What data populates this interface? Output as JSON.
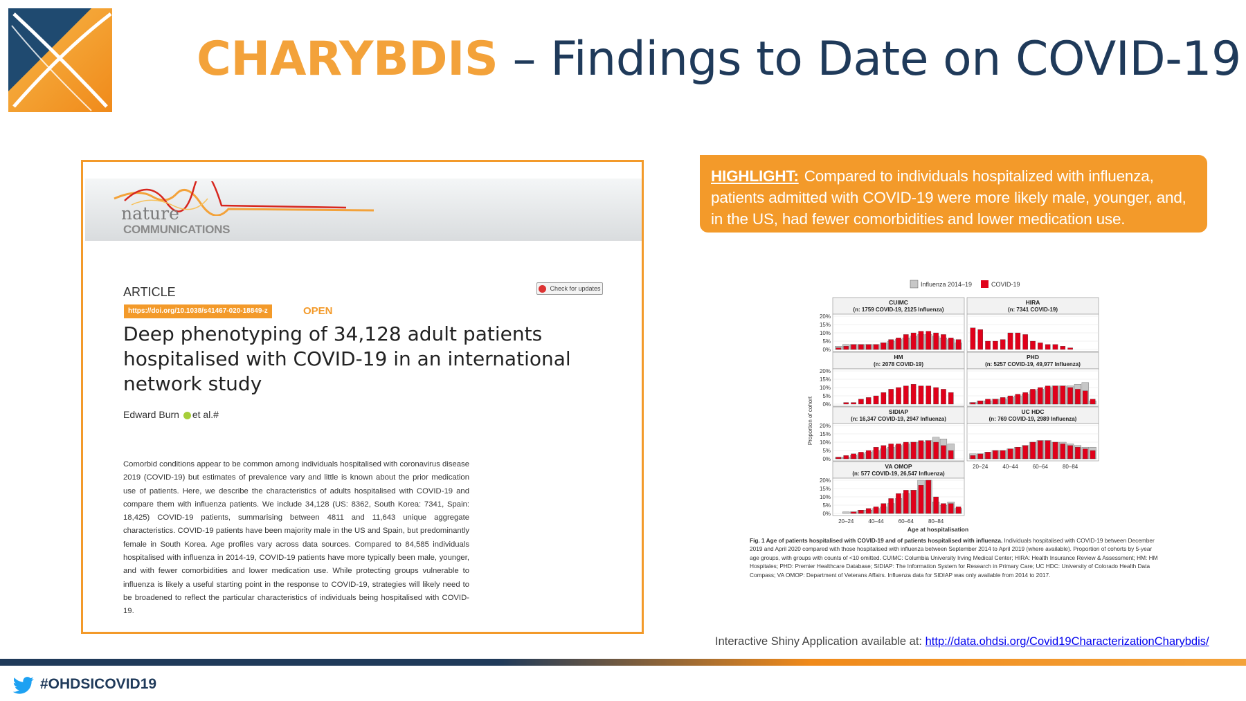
{
  "slide": {
    "title_accent": "CHARYBDIS",
    "title_rest": " – Findings to Date on COVID-19",
    "colors": {
      "accent": "#f3a23a",
      "navy": "#1f3a5a",
      "covid": "#e0001a",
      "influenza": "#c7c7c7"
    }
  },
  "paper": {
    "journal_name": "nature",
    "journal_sub": "COMMUNICATIONS",
    "article_type": "ARTICLE",
    "check_updates": "Check for updates",
    "doi": "https://doi.org/10.1038/s41467-020-18849-z",
    "open_label": "OPEN",
    "title": "Deep phenotyping of 34,128 adult patients hospitalised with COVID-19 in an international network study",
    "authors_name": "Edward Burn",
    "authors_suffix": "et al.#",
    "abstract": "Comorbid conditions appear to be common among individuals hospitalised with coronavirus disease 2019 (COVID-19) but estimates of prevalence vary and little is known about the prior medication use of patients. Here, we describe the characteristics of adults hospitalised with COVID-19 and compare them with influenza patients. We include 34,128 (US: 8362, South Korea: 7341, Spain: 18,425) COVID-19 patients, summarising between 4811 and 11,643 unique aggregate characteristics. COVID-19 patients have been majority male in the US and Spain, but predominantly female in South Korea. Age profiles vary across data sources. Compared to 84,585 individuals hospitalised with influenza in 2014-19, COVID-19 patients have more typically been male, younger, and with fewer comorbidities and lower medication use. While protecting groups vulnerable to influenza is likely a useful starting point in the response to COVID-19, strategies will likely need to be broadened to reflect the particular characteristics of individuals being hospitalised with COVID-19."
  },
  "highlight": {
    "label": "HIGHLIGHT:",
    "text": "Compared to individuals hospitalized with influenza, patients admitted with COVID-19 were more likely male, younger, and, in the US, had fewer comorbidities and lower medication use."
  },
  "figure": {
    "caption_bold": "Fig. 1 Age of patients hospitalised with COVID-19 and of patients hospitalised with influenza.",
    "caption_text": " Individuals hospitalised with COVID-19 between December 2019 and April 2020 compared with those hospitalised with influenza between September 2014 to April 2019 (where available). Proportion of cohorts by 5-year age groups, with groups with counts of <10 omitted. CUIMC: Columbia University Irving Medical Center; HIRA: Health Insurance Review & Assessment; HM: HM Hospitales; PHD: Premier Healthcare Database; SIDIAP: The Information System for Research in Primary Care; UC HDC: University of Colorado Health Data Compass; VA OMOP: Department of Veterans Affairs. Influenza data for SIDIAP was only available from 2014 to 2017."
  },
  "chart_data": {
    "type": "bar",
    "legend": [
      "Influenza 2014–19",
      "COVID-19"
    ],
    "legend_position": "top",
    "ylabel": "Proportion of cohort",
    "xlabel": "Age at hospitalisation",
    "yticks": [
      "0%",
      "5%",
      "10%",
      "15%",
      "20%"
    ],
    "ylim": [
      0,
      20
    ],
    "xticks": [
      "20–24",
      "40–44",
      "60–64",
      "80–84"
    ],
    "categories": [
      "18-19",
      "20-24",
      "25-29",
      "30-34",
      "35-39",
      "40-44",
      "45-49",
      "50-54",
      "55-59",
      "60-64",
      "65-69",
      "70-74",
      "75-79",
      "80-84",
      "85-89",
      "90-94",
      "95-99"
    ],
    "panels": [
      {
        "name": "CUIMC",
        "subtitle": "(n: 1759 COVID-19, 2125 Influenza)",
        "covid": [
          1,
          2,
          3,
          3,
          3,
          3,
          4,
          6,
          7,
          9,
          10,
          11,
          11,
          10,
          9,
          7,
          6
        ],
        "flu": [
          2,
          3,
          3,
          3,
          3,
          3,
          4,
          5,
          6,
          7,
          8,
          9,
          9,
          8,
          7,
          6,
          4
        ]
      },
      {
        "name": "HIRA",
        "subtitle": "(n: 7341 COVID-19)",
        "covid": [
          13,
          12,
          5,
          5,
          6,
          10,
          10,
          9,
          5,
          4,
          3,
          3,
          2,
          1,
          0,
          0,
          0
        ],
        "flu": []
      },
      {
        "name": "HM",
        "subtitle": "(n: 2078 COVID-19)",
        "covid": [
          0,
          1,
          1,
          3,
          4,
          5,
          7,
          9,
          10,
          11,
          12,
          11,
          11,
          10,
          9,
          7,
          0
        ],
        "flu": []
      },
      {
        "name": "PHD",
        "subtitle": "(n: 5257 COVID-19, 49,977 Influenza)",
        "covid": [
          1,
          2,
          3,
          3,
          4,
          5,
          6,
          7,
          9,
          10,
          11,
          11,
          11,
          10,
          9,
          8,
          3
        ],
        "flu": [
          1,
          2,
          2,
          3,
          3,
          4,
          5,
          6,
          8,
          9,
          10,
          11,
          11,
          11,
          12,
          13,
          2
        ]
      },
      {
        "name": "SIDIAP",
        "subtitle": "(n: 16,347 COVID-19, 2947 Influenza)",
        "covid": [
          1,
          2,
          3,
          4,
          5,
          7,
          8,
          9,
          9,
          10,
          10,
          11,
          11,
          10,
          8,
          5,
          0
        ],
        "flu": [
          1,
          1,
          2,
          3,
          4,
          5,
          6,
          7,
          8,
          9,
          10,
          10,
          11,
          13,
          12,
          9,
          0
        ]
      },
      {
        "name": "UC HDC",
        "subtitle": "(n: 769 COVID-19, 2989 Influenza)",
        "covid": [
          2,
          3,
          4,
          5,
          5,
          6,
          7,
          8,
          10,
          11,
          11,
          10,
          9,
          8,
          7,
          6,
          5
        ],
        "flu": [
          3,
          3,
          4,
          5,
          5,
          6,
          7,
          8,
          10,
          11,
          11,
          10,
          10,
          9,
          8,
          7,
          7
        ]
      },
      {
        "name": "VA OMOP",
        "subtitle": "(n: 577 COVID-19, 26,547 Influenza)",
        "covid": [
          0,
          0,
          1,
          2,
          3,
          4,
          6,
          9,
          12,
          14,
          14,
          17,
          20,
          10,
          6,
          6,
          4
        ],
        "flu": [
          0,
          1,
          1,
          2,
          2,
          3,
          4,
          6,
          9,
          12,
          14,
          20,
          20,
          7,
          5,
          7,
          3
        ]
      }
    ]
  },
  "shiny": {
    "text": "Interactive Shiny Application available at: ",
    "link": "http://data.ohdsi.org/Covid19CharacterizationCharybdis/"
  },
  "footer": {
    "hashtag": "#OHDSICOVID19"
  }
}
